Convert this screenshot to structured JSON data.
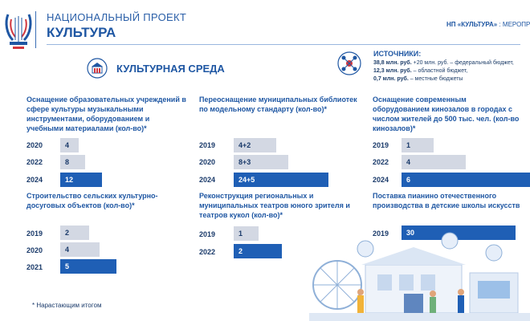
{
  "header": {
    "title": "НАЦИОНАЛЬНЫЙ ПРОЕКТ",
    "subtitle": "КУЛЬТУРА",
    "breadcrumb_bold": "НП «КУЛЬТУРА»",
    "breadcrumb_rest": " : МЕРОПРИЯТ"
  },
  "section": {
    "title": "КУЛЬТУРНАЯ СРЕДА"
  },
  "sources": {
    "title": "ИСТОЧНИКИ:",
    "lines": [
      {
        "bold": "38,8 млн. руб.",
        "rest": " +20 млн. руб. – федеральный бюджет,"
      },
      {
        "bold": "12,3 млн. руб.",
        "rest": " – областной бюджет,"
      },
      {
        "bold": "0,7 млн. руб.",
        "rest": " – местные бюджеты"
      }
    ]
  },
  "blocks": [
    {
      "title": "Оснащение образовательных учреждений в сфере культуры музыкальными инструментами, оборудованием и учебными материалами (кол-во)*",
      "rows": [
        {
          "year": "2020",
          "value": "4",
          "style": "grey",
          "fill": 0.24
        },
        {
          "year": "2022",
          "value": "8",
          "style": "grey",
          "fill": 0.33
        },
        {
          "year": "2024",
          "value": "12",
          "style": "blue",
          "fill": 0.55
        }
      ]
    },
    {
      "title": "Переоснащение муниципальных библиотек по модельному стандарту (кол-во)*",
      "rows": [
        {
          "year": "2019",
          "value": "4+2",
          "style": "grey",
          "fill": 0.34
        },
        {
          "year": "2020",
          "value": "8+3",
          "style": "grey",
          "fill": 0.44
        },
        {
          "year": "2024",
          "value": "24+5",
          "style": "blue",
          "fill": 0.76
        }
      ]
    },
    {
      "title": "Оснащение современным оборудованием кинозалов в городах с числом жителей до 500 тыс. чел. (кол-во кинозалов)*",
      "rows": [
        {
          "year": "2019",
          "value": "1",
          "style": "grey",
          "fill": 0.25
        },
        {
          "year": "2022",
          "value": "4",
          "style": "grey",
          "fill": 0.5
        },
        {
          "year": "2024",
          "value": "6",
          "style": "blue",
          "fill": 1.0
        }
      ]
    },
    {
      "title": "Строительство сельских культурно-досуговых объектов (кол-во)*",
      "rows": [
        {
          "year": "2019",
          "value": "2",
          "style": "grey",
          "fill": 0.26
        },
        {
          "year": "2020",
          "value": "4",
          "style": "grey",
          "fill": 0.35
        },
        {
          "year": "2021",
          "value": "5",
          "style": "blue",
          "fill": 0.5
        }
      ]
    },
    {
      "title": "Реконструкция региональных и муниципальных театров юного зрителя и театров кукол (кол-во)*",
      "rows": [
        {
          "year": "2019",
          "value": "1",
          "style": "grey",
          "fill": 0.26
        },
        {
          "year": "2022",
          "value": "2",
          "style": "blue",
          "fill": 0.5
        }
      ]
    },
    {
      "title": "Поставка пианино отечественного производства в детские школы искусств",
      "rows": [
        {
          "year": "2019",
          "value": "30",
          "style": "blue",
          "fill": 1.0
        }
      ]
    }
  ],
  "footnote": "* Нарастающим итогом",
  "colors": {
    "primary": "#1f5fb5",
    "grey_bar": "#d3d8e3",
    "title_blue": "#1f57a3"
  },
  "icons": {
    "logo": "lyre-logo-icon",
    "section": "culture-building-icon",
    "sources": "funding-network-icon",
    "illustration": "city-festival-illustration"
  }
}
